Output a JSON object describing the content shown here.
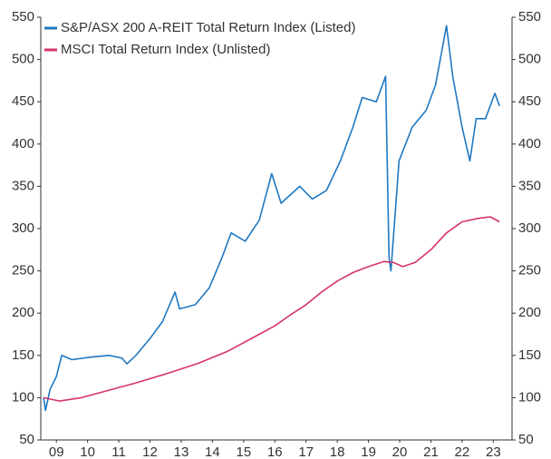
{
  "chart_data": {
    "type": "line",
    "series": [
      {
        "name": "S&P/ASX 200 A-REIT Total Return Index (Listed)",
        "color": "#1f78c1",
        "x": [
          2009.09,
          2009.15,
          2009.3,
          2009.5,
          2009.67,
          2010.0,
          2010.6,
          2011.18,
          2011.6,
          2011.76,
          2012.05,
          2012.5,
          2012.9,
          2013.3,
          2013.45,
          2013.95,
          2014.4,
          2014.8,
          2015.1,
          2015.55,
          2016.0,
          2016.4,
          2016.7,
          2017.3,
          2017.7,
          2018.15,
          2018.6,
          2019.0,
          2019.3,
          2019.75,
          2020.05,
          2020.16,
          2020.22,
          2020.48,
          2020.9,
          2021.35,
          2021.65,
          2022.0,
          2022.2,
          2022.5,
          2022.75,
          2022.95,
          2023.25,
          2023.55,
          2023.7
        ],
        "values": [
          100,
          85,
          110,
          125,
          150,
          145,
          148,
          150,
          147,
          140,
          150,
          170,
          190,
          225,
          205,
          210,
          230,
          265,
          295,
          285,
          310,
          365,
          330,
          350,
          335,
          345,
          380,
          420,
          455,
          450,
          480,
          265,
          250,
          380,
          420,
          440,
          470,
          540,
          480,
          420,
          380,
          430,
          430,
          460,
          445
        ]
      },
      {
        "name": "MSCI Total Return Index (Unlisted)",
        "color": "#d6336c",
        "x": [
          2009.09,
          2009.6,
          2010.3,
          2011.0,
          2012.0,
          2013.0,
          2014.0,
          2015.0,
          2016.0,
          2016.5,
          2017.0,
          2017.5,
          2018.0,
          2018.5,
          2019.0,
          2019.5,
          2020.0,
          2020.3,
          2020.6,
          2021.0,
          2021.5,
          2022.0,
          2022.5,
          2023.0,
          2023.4,
          2023.7
        ],
        "values": [
          100,
          96,
          100,
          107,
          117,
          128,
          140,
          155,
          175,
          185,
          198,
          210,
          225,
          238,
          248,
          255,
          261,
          260,
          255,
          260,
          275,
          295,
          308,
          312,
          314,
          308
        ]
      }
    ],
    "xlim": [
      2009.0,
      2024.1
    ],
    "xticks": [
      {
        "value": 2009.5,
        "label": "09"
      },
      {
        "value": 2010.5,
        "label": "10"
      },
      {
        "value": 2011.5,
        "label": "11"
      },
      {
        "value": 2012.5,
        "label": "12"
      },
      {
        "value": 2013.5,
        "label": "13"
      },
      {
        "value": 2014.5,
        "label": "14"
      },
      {
        "value": 2015.5,
        "label": "15"
      },
      {
        "value": 2016.5,
        "label": "16"
      },
      {
        "value": 2017.5,
        "label": "17"
      },
      {
        "value": 2018.5,
        "label": "18"
      },
      {
        "value": 2019.5,
        "label": "19"
      },
      {
        "value": 2020.5,
        "label": "20"
      },
      {
        "value": 2021.5,
        "label": "21"
      },
      {
        "value": 2022.5,
        "label": "22"
      },
      {
        "value": 2023.5,
        "label": "23"
      }
    ],
    "ylim": [
      50,
      550
    ],
    "yticks": [
      50,
      100,
      150,
      200,
      250,
      300,
      350,
      400,
      450,
      500,
      550
    ],
    "y2lim": [
      50,
      550
    ],
    "y2ticks": [
      50,
      100,
      150,
      200,
      250,
      300,
      350,
      400,
      450,
      500,
      550
    ],
    "legend": "top-left"
  }
}
